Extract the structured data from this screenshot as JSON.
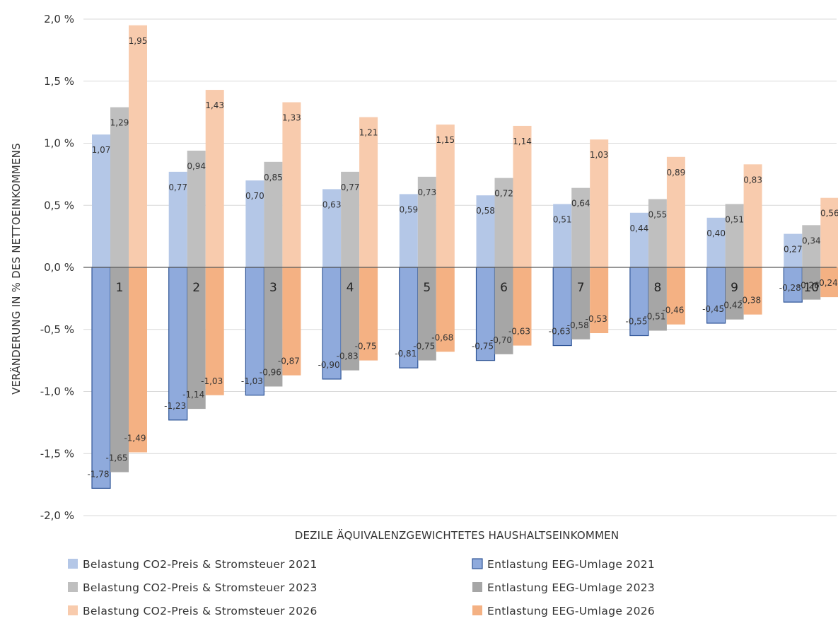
{
  "chart_data": {
    "type": "bar",
    "xlabel": "DEZILE ÄQUIVALENZGEWICHTETES HAUSHALTSEINKOMMEN",
    "ylabel": "VERÄNDERUNG IN % DES NETTOEINKOMMENS",
    "ylim": [
      -2.0,
      2.0
    ],
    "yticks": [
      "2,0 %",
      "1,5 %",
      "1,0 %",
      "0,5 %",
      "0,0 %",
      "-0,5 %",
      "-1,0 %",
      "-1,5 %",
      "-2,0 %"
    ],
    "ytick_values": [
      2.0,
      1.5,
      1.0,
      0.5,
      0.0,
      -0.5,
      -1.0,
      -1.5,
      -2.0
    ],
    "grid": true,
    "legend_position": "bottom",
    "categories": [
      "1",
      "2",
      "3",
      "4",
      "5",
      "6",
      "7",
      "8",
      "9",
      "10"
    ],
    "series": [
      {
        "name": "Belastung CO2-Preis & Stromsteuer 2021",
        "color": "#b4c7e7",
        "values": [
          1.07,
          0.77,
          0.7,
          0.63,
          0.59,
          0.58,
          0.51,
          0.44,
          0.4,
          0.27
        ],
        "labels": [
          "1,07",
          "0,77",
          "0,70",
          "0,63",
          "0,59",
          "0,58",
          "0,51",
          "0,44",
          "0,40",
          "0,27"
        ]
      },
      {
        "name": "Belastung CO2-Preis & Stromsteuer 2023",
        "color": "#bfbfbf",
        "values": [
          1.29,
          0.94,
          0.85,
          0.77,
          0.73,
          0.72,
          0.64,
          0.55,
          0.51,
          0.34
        ],
        "labels": [
          "1,29",
          "0,94",
          "0,85",
          "0,77",
          "0,73",
          "0,72",
          "0,64",
          "0,55",
          "0,51",
          "0,34"
        ]
      },
      {
        "name": "Belastung CO2-Preis & Stromsteuer 2026",
        "color": "#f8cbad",
        "values": [
          1.95,
          1.43,
          1.33,
          1.21,
          1.15,
          1.14,
          1.03,
          0.89,
          0.83,
          0.56
        ],
        "labels": [
          "1,95",
          "1,43",
          "1,33",
          "1,21",
          "1,15",
          "1,14",
          "1,03",
          "0,89",
          "0,83",
          "0,56"
        ]
      },
      {
        "name": "Entlastung EEG-Umlage 2021",
        "color": "#8faadc",
        "stroke": "#2f5597",
        "values": [
          -1.78,
          -1.23,
          -1.03,
          -0.9,
          -0.81,
          -0.75,
          -0.63,
          -0.55,
          -0.45,
          -0.28
        ],
        "labels": [
          "-1,78",
          "-1,23",
          "-1,03",
          "-0,90",
          "-0,81",
          "-0,75",
          "-0,63",
          "-0,55",
          "-0,45",
          "-0,28"
        ]
      },
      {
        "name": "Entlastung EEG-Umlage 2023",
        "color": "#a6a6a6",
        "values": [
          -1.65,
          -1.14,
          -0.96,
          -0.83,
          -0.75,
          -0.7,
          -0.58,
          -0.51,
          -0.42,
          -0.26
        ],
        "labels": [
          "-1,65",
          "-1,14",
          "-0,96",
          "-0,83",
          "-0,75",
          "-0,70",
          "-0,58",
          "-0,51",
          "-0,42",
          "-0,26"
        ]
      },
      {
        "name": "Entlastung EEG-Umlage 2026",
        "color": "#f4b183",
        "values": [
          -1.49,
          -1.03,
          -0.87,
          -0.75,
          -0.68,
          -0.63,
          -0.53,
          -0.46,
          -0.38,
          -0.24
        ],
        "labels": [
          "-1,49",
          "-1,03",
          "-0,87",
          "-0,75",
          "-0,68",
          "-0,63",
          "-0,53",
          "-0,46",
          "-0,38",
          "-0,24"
        ]
      }
    ]
  }
}
